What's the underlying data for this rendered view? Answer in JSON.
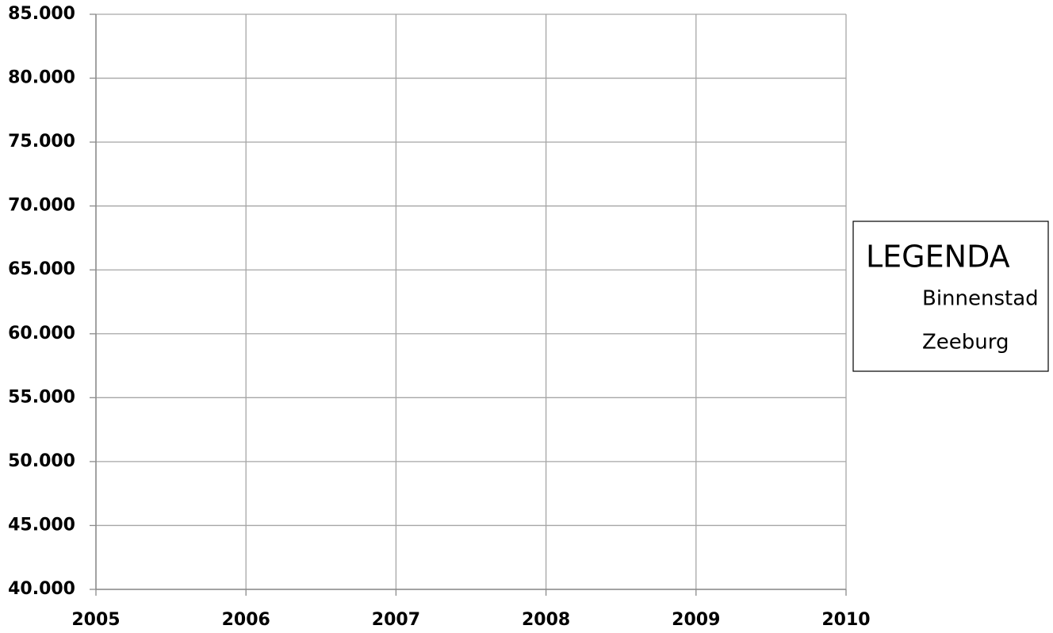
{
  "chart_data": {
    "type": "line",
    "x": [
      2005,
      2006,
      2007,
      2008,
      2009,
      2010
    ],
    "series": [
      {
        "name": "Binnenstad",
        "values": [
          null,
          null,
          null,
          null,
          null,
          null
        ]
      },
      {
        "name": "Zeeburg",
        "values": [
          null,
          null,
          null,
          null,
          null,
          null
        ]
      }
    ],
    "legend_title": "LEGENDA",
    "legend": "right",
    "grid": true,
    "xlim": [
      2005,
      2010
    ],
    "xticks": [
      2005,
      2006,
      2007,
      2008,
      2009,
      2010
    ],
    "ylim": [
      40000,
      85000
    ],
    "yticks": [
      {
        "value": 40000,
        "label": "40.000"
      },
      {
        "value": 45000,
        "label": "45.000"
      },
      {
        "value": 50000,
        "label": "50.000"
      },
      {
        "value": 55000,
        "label": "55.000"
      },
      {
        "value": 60000,
        "label": "60.000"
      },
      {
        "value": 65000,
        "label": "65.000"
      },
      {
        "value": 70000,
        "label": "70.000"
      },
      {
        "value": 75000,
        "label": "75.000"
      },
      {
        "value": 80000,
        "label": "80.000"
      },
      {
        "value": 85000,
        "label": "85.000"
      }
    ]
  }
}
